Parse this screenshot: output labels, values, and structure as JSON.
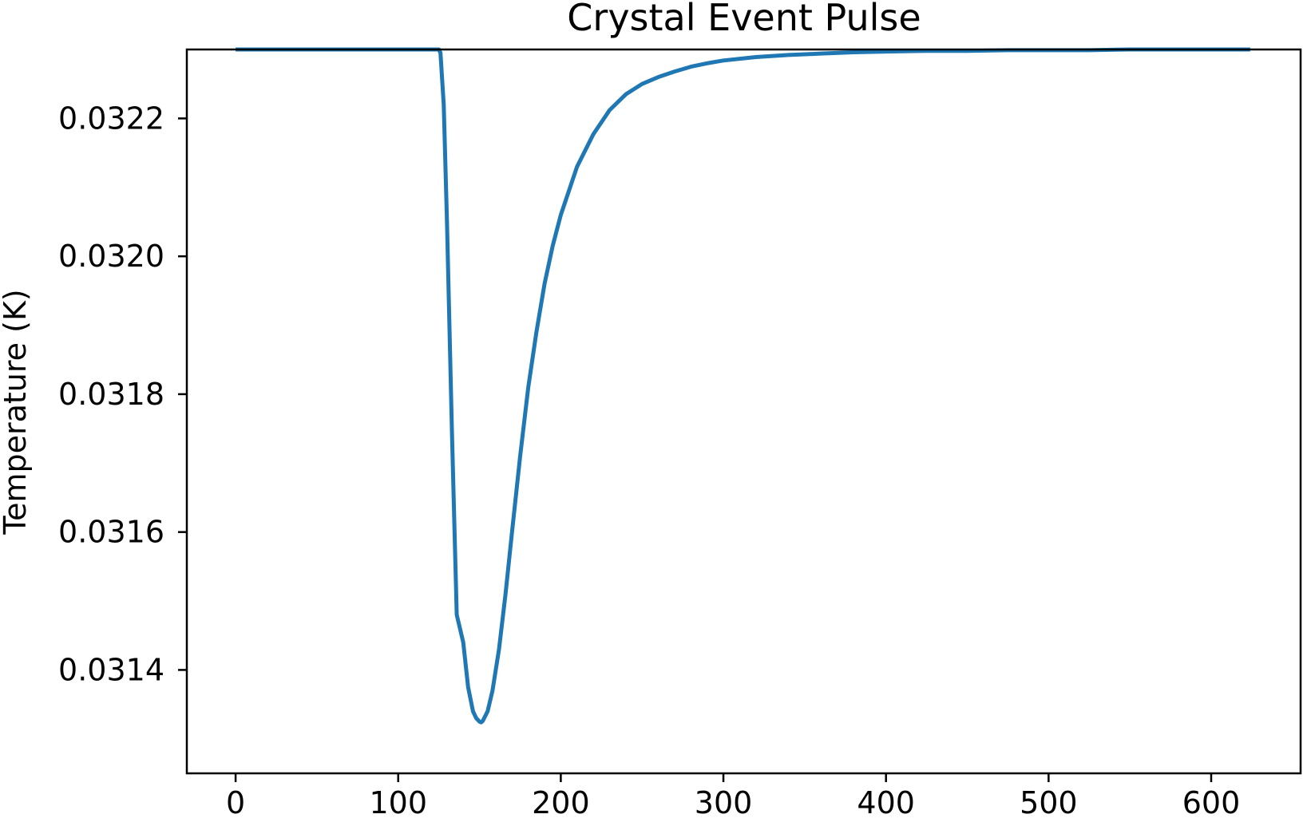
{
  "chart_data": {
    "type": "line",
    "title": "Crystal Event Pulse",
    "xlabel": "",
    "ylabel": "Temperature (K)",
    "xlim": [
      -30,
      655
    ],
    "ylim": [
      0.03125,
      0.0323
    ],
    "x_ticks": [
      0,
      100,
      200,
      300,
      400,
      500,
      600
    ],
    "x_tick_labels": [
      "0",
      "100",
      "200",
      "300",
      "400",
      "500",
      "600"
    ],
    "y_ticks": [
      0.0314,
      0.0316,
      0.0318,
      0.032,
      0.0322
    ],
    "y_tick_labels": [
      "0.0314",
      "0.0316",
      "0.0318",
      "0.0320",
      "0.0322"
    ],
    "grid": false,
    "line_color": "#1f77b4",
    "series": [
      {
        "x": [
          0,
          50,
          100,
          124,
          125,
          126,
          128,
          130,
          133,
          136,
          140,
          143,
          146,
          148,
          150,
          151,
          152,
          155,
          158,
          162,
          166,
          170,
          175,
          180,
          185,
          190,
          195,
          200,
          210,
          220,
          230,
          240,
          250,
          260,
          270,
          280,
          290,
          300,
          320,
          340,
          360,
          380,
          400,
          425,
          450,
          475,
          500,
          525,
          550,
          575,
          600,
          624
        ],
        "y": [
          0.0323,
          0.0323,
          0.0323,
          0.0323,
          0.0323,
          0.032295,
          0.03222,
          0.03205,
          0.03175,
          0.03148,
          0.03144,
          0.031375,
          0.03134,
          0.03133,
          0.031325,
          0.031324,
          0.031326,
          0.03134,
          0.03137,
          0.03143,
          0.03151,
          0.0316,
          0.03171,
          0.03181,
          0.03189,
          0.03196,
          0.032015,
          0.03206,
          0.03213,
          0.032177,
          0.032212,
          0.032235,
          0.03225,
          0.03226,
          0.032268,
          0.032275,
          0.03228,
          0.032284,
          0.032289,
          0.032292,
          0.032294,
          0.032296,
          0.032297,
          0.032298,
          0.032298,
          0.032299,
          0.032299,
          0.032299,
          0.0323,
          0.0323,
          0.0323,
          0.0323
        ]
      }
    ]
  }
}
